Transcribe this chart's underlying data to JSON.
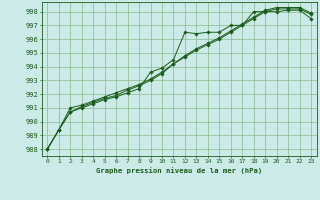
{
  "title": "Graphe pression niveau de la mer (hPa)",
  "bg_color": "#cceae8",
  "grid_color": "#88bb88",
  "line_color": "#1a5c1a",
  "marker_color": "#1a5c1a",
  "xlim": [
    -0.5,
    23.5
  ],
  "ylim": [
    987.5,
    998.7
  ],
  "xticks": [
    0,
    1,
    2,
    3,
    4,
    5,
    6,
    7,
    8,
    9,
    10,
    11,
    12,
    13,
    14,
    15,
    16,
    17,
    18,
    19,
    20,
    21,
    22,
    23
  ],
  "yticks": [
    988,
    989,
    990,
    991,
    992,
    993,
    994,
    995,
    996,
    997,
    998
  ],
  "series": [
    [
      988.0,
      989.4,
      990.7,
      991.0,
      991.3,
      991.6,
      991.8,
      992.1,
      992.4,
      993.6,
      993.9,
      994.5,
      996.5,
      996.4,
      996.5,
      996.5,
      997.0,
      997.0,
      998.0,
      998.0,
      998.0,
      998.1,
      998.1,
      997.5
    ],
    [
      988.0,
      989.4,
      990.7,
      991.1,
      991.4,
      991.7,
      991.9,
      992.3,
      992.6,
      993.0,
      993.5,
      994.2,
      994.7,
      995.2,
      995.6,
      996.0,
      996.5,
      997.0,
      997.5,
      998.0,
      998.2,
      998.2,
      998.2,
      997.8
    ],
    [
      988.0,
      989.4,
      991.0,
      991.2,
      991.5,
      991.8,
      992.1,
      992.4,
      992.7,
      993.1,
      993.6,
      994.2,
      994.8,
      995.3,
      995.7,
      996.1,
      996.6,
      997.1,
      997.6,
      998.1,
      998.3,
      998.3,
      998.3,
      997.9
    ]
  ]
}
